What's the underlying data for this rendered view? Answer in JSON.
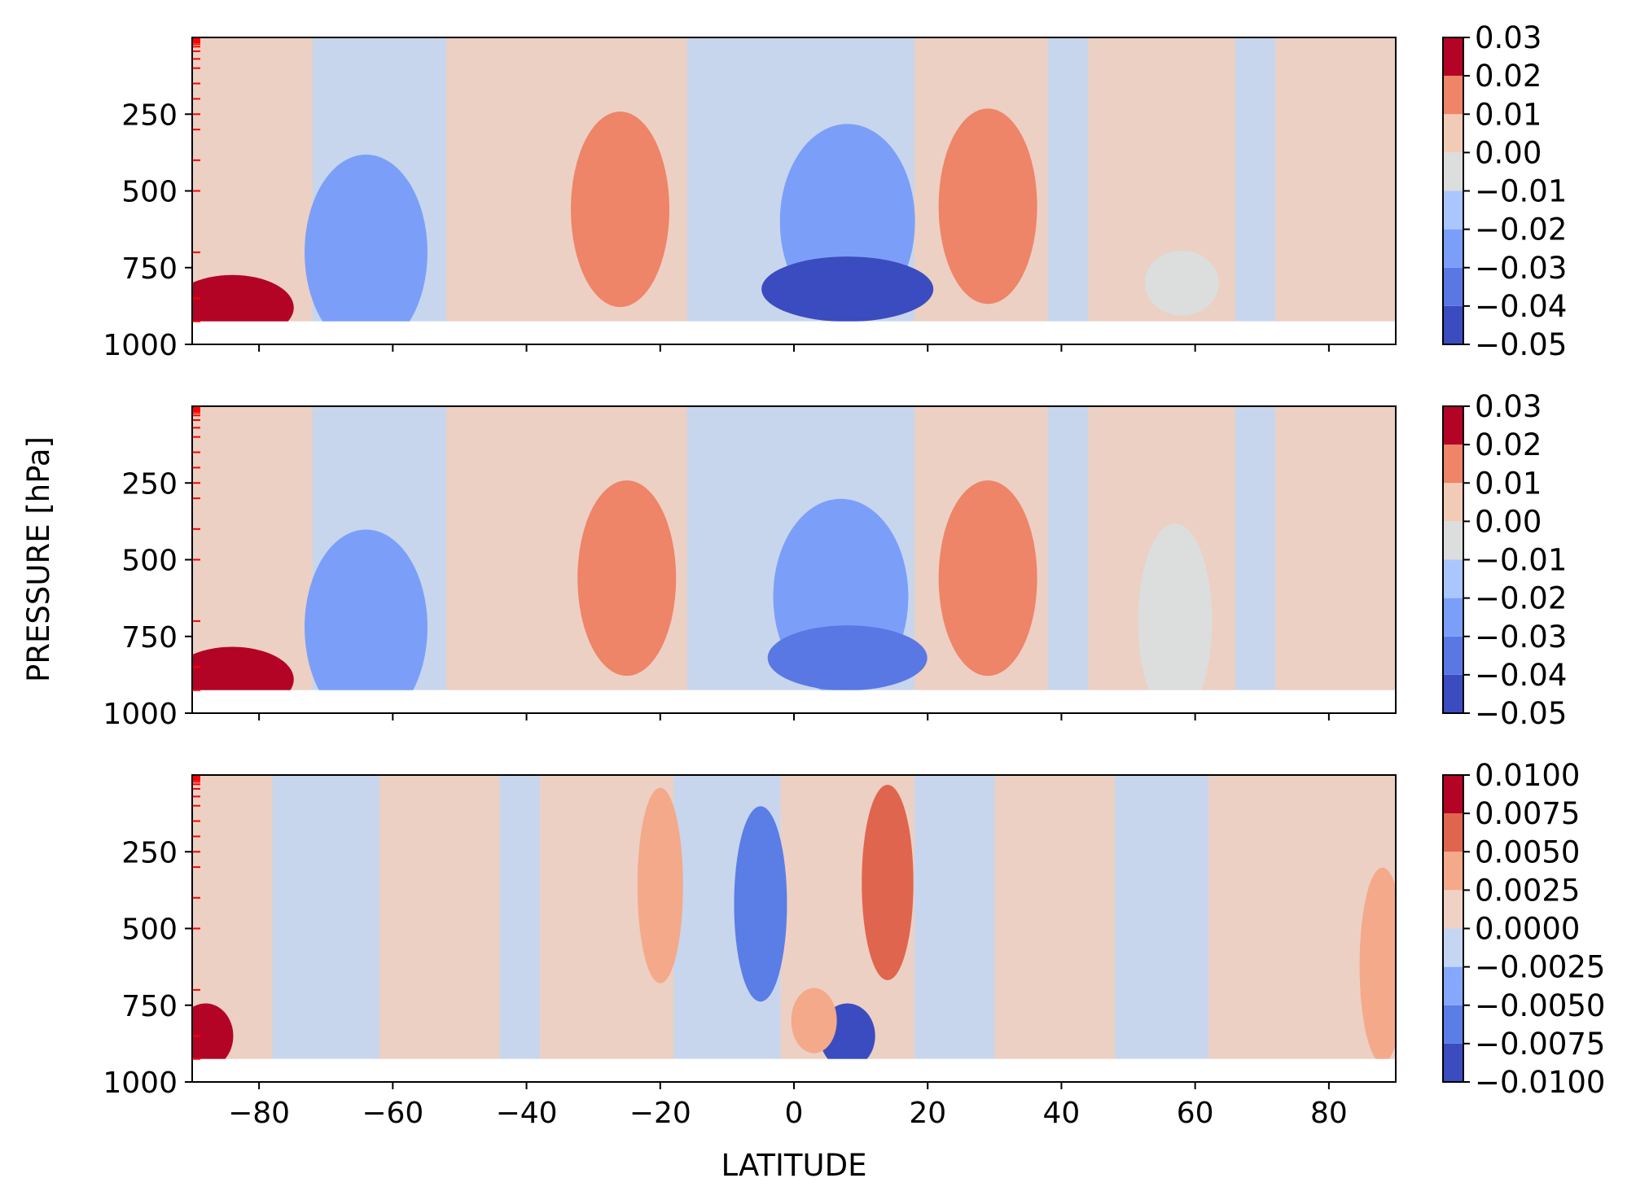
{
  "figure": {
    "xlabel": "LATITUDE",
    "ylabel": "PRESSURE [hPa]"
  },
  "chart_data": [
    {
      "type": "heatmap",
      "subtype": "filled-contour",
      "colormap": "coolwarm",
      "x": {
        "label": "LATITUDE",
        "range": [
          -90,
          90
        ],
        "ticks": [
          -80,
          -60,
          -40,
          -20,
          0,
          20,
          40,
          60,
          80
        ],
        "tick_labels_shown": false
      },
      "y": {
        "range": [
          0,
          1000
        ],
        "ticks": [
          250,
          500,
          750,
          1000
        ],
        "data_range_top": 925,
        "minor_marks": "red"
      },
      "levels": [
        -0.05,
        -0.04,
        -0.03,
        -0.02,
        -0.01,
        0.0,
        0.01,
        0.02,
        0.03
      ],
      "colorbar_labels": [
        "0.03",
        "0.02",
        "0.01",
        "0.00",
        "−0.01",
        "−0.02",
        "−0.03",
        "−0.04",
        "−0.05"
      ],
      "features": [
        {
          "lat": -84,
          "p": 880,
          "value": 0.025
        },
        {
          "lat": -64,
          "p": 700,
          "value": -0.025
        },
        {
          "lat": -26,
          "p": 560,
          "value": 0.015
        },
        {
          "lat": 8,
          "p": 600,
          "value": -0.03
        },
        {
          "lat": 8,
          "p": 820,
          "value": -0.045
        },
        {
          "lat": 29,
          "p": 550,
          "value": 0.015
        },
        {
          "lat": 58,
          "p": 800,
          "value": -0.005
        }
      ]
    },
    {
      "type": "heatmap",
      "subtype": "filled-contour",
      "colormap": "coolwarm",
      "x": {
        "label": "LATITUDE",
        "range": [
          -90,
          90
        ],
        "ticks": [
          -80,
          -60,
          -40,
          -20,
          0,
          20,
          40,
          60,
          80
        ],
        "tick_labels_shown": false
      },
      "y": {
        "range": [
          0,
          1000
        ],
        "ticks": [
          250,
          500,
          750,
          1000
        ],
        "data_range_top": 925,
        "minor_marks": "red"
      },
      "levels": [
        -0.05,
        -0.04,
        -0.03,
        -0.02,
        -0.01,
        0.0,
        0.01,
        0.02,
        0.03
      ],
      "colorbar_labels": [
        "0.03",
        "0.02",
        "0.01",
        "0.00",
        "−0.01",
        "−0.02",
        "−0.03",
        "−0.04",
        "−0.05"
      ],
      "features": [
        {
          "lat": -84,
          "p": 890,
          "value": 0.025
        },
        {
          "lat": -64,
          "p": 720,
          "value": -0.025
        },
        {
          "lat": -25,
          "p": 560,
          "value": 0.015
        },
        {
          "lat": 7,
          "p": 620,
          "value": -0.03
        },
        {
          "lat": 8,
          "p": 820,
          "value": -0.04
        },
        {
          "lat": 29,
          "p": 560,
          "value": 0.015
        },
        {
          "lat": 57,
          "p": 700,
          "value": -0.005
        }
      ]
    },
    {
      "type": "heatmap",
      "subtype": "filled-contour",
      "colormap": "coolwarm",
      "x": {
        "label": "LATITUDE",
        "range": [
          -90,
          90
        ],
        "ticks": [
          -80,
          -60,
          -40,
          -20,
          0,
          20,
          40,
          60,
          80
        ],
        "tick_labels_shown": true
      },
      "y": {
        "range": [
          0,
          1000
        ],
        "ticks": [
          250,
          500,
          750,
          1000
        ],
        "data_range_top": 925,
        "minor_marks": "red"
      },
      "levels": [
        -0.01,
        -0.0075,
        -0.005,
        -0.0025,
        0.0,
        0.0025,
        0.005,
        0.0075,
        0.01
      ],
      "colorbar_labels": [
        "0.0100",
        "0.0075",
        "0.0050",
        "0.0025",
        "0.0000",
        "−0.0025",
        "−0.0050",
        "−0.0075",
        "−0.0100"
      ],
      "features": [
        {
          "lat": -88,
          "p": 850,
          "value": 0.008
        },
        {
          "lat": -20,
          "p": 360,
          "value": 0.004
        },
        {
          "lat": -5,
          "p": 420,
          "value": -0.007
        },
        {
          "lat": 8,
          "p": 850,
          "value": -0.008
        },
        {
          "lat": 3,
          "p": 800,
          "value": 0.004
        },
        {
          "lat": 14,
          "p": 350,
          "value": 0.0065
        },
        {
          "lat": 88,
          "p": 620,
          "value": 0.004
        }
      ]
    }
  ]
}
